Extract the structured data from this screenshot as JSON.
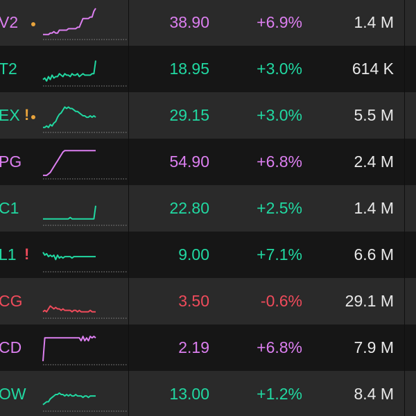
{
  "colors": {
    "green": "#21d9a2",
    "purple": "#dc7ff0",
    "red": "#f04b5b",
    "amber": "#e8a33c",
    "white": "#e8e8e8"
  },
  "rows": [
    {
      "ticker": "V2",
      "price": "38.90",
      "change": "+6.9%",
      "volume": "1.4 M",
      "color": "purple",
      "alert": "",
      "alert_color": "",
      "dot": true,
      "dot_color": "amber",
      "spark": [
        2,
        2,
        2,
        2,
        3,
        3,
        4,
        3,
        3,
        5,
        5,
        5,
        5,
        5,
        6,
        6,
        6,
        6,
        6,
        7,
        7,
        10,
        13,
        13,
        13,
        13,
        14,
        14,
        18,
        20
      ]
    },
    {
      "ticker": "T2",
      "price": "18.95",
      "change": "+3.0%",
      "volume": "614 K",
      "color": "green",
      "alert": "",
      "alert_color": "",
      "dot": false,
      "dot_color": "",
      "spark": [
        3,
        4,
        2,
        5,
        3,
        6,
        4,
        5,
        5,
        7,
        6,
        5,
        7,
        6,
        6,
        5,
        7,
        6,
        6,
        7,
        5,
        6,
        7,
        6,
        6,
        6,
        6,
        7,
        7,
        16
      ]
    },
    {
      "ticker": "EX",
      "price": "29.15",
      "change": "+3.0%",
      "volume": "5.5 M",
      "color": "green",
      "alert": "!",
      "alert_color": "amber",
      "dot": true,
      "dot_color": "amber",
      "spark": [
        2,
        2,
        3,
        2,
        4,
        3,
        5,
        6,
        9,
        11,
        12,
        14,
        16,
        15,
        16,
        15,
        15,
        14,
        13,
        13,
        12,
        11,
        10,
        10,
        9,
        9,
        10,
        9,
        10,
        9
      ]
    },
    {
      "ticker": "PG",
      "price": "54.90",
      "change": "+6.8%",
      "volume": "2.4 M",
      "color": "purple",
      "alert": "",
      "alert_color": "",
      "dot": false,
      "dot_color": "",
      "spark": [
        1,
        1,
        1,
        2,
        3,
        5,
        7,
        9,
        11,
        13,
        15,
        17,
        18,
        18,
        18,
        18,
        18,
        18,
        18,
        18,
        18,
        18,
        18,
        18,
        18,
        18,
        18,
        18,
        18,
        18
      ]
    },
    {
      "ticker": "C1",
      "price": "22.80",
      "change": "+2.5%",
      "volume": "1.4 M",
      "color": "green",
      "alert": "",
      "alert_color": "",
      "dot": false,
      "dot_color": "",
      "spark": [
        3,
        3,
        3,
        3,
        3,
        3,
        3,
        3,
        3,
        3,
        3,
        3,
        3,
        3,
        3,
        4,
        3,
        3,
        3,
        3,
        3,
        3,
        3,
        3,
        3,
        3,
        3,
        3,
        3,
        12
      ]
    },
    {
      "ticker": "L1",
      "price": "9.00",
      "change": "+7.1%",
      "volume": "6.6 M",
      "color": "green",
      "alert": "!",
      "alert_color": "red",
      "dot": false,
      "dot_color": "",
      "spark": [
        12,
        10,
        11,
        9,
        10,
        9,
        10,
        7,
        10,
        8,
        9,
        8,
        9,
        9,
        9,
        9,
        8,
        9,
        9,
        9,
        9,
        9,
        9,
        9,
        9,
        9,
        9,
        9,
        9,
        9
      ]
    },
    {
      "ticker": "CG",
      "price": "3.50",
      "change": "-0.6%",
      "volume": "29.1 M",
      "color": "red",
      "alert": "",
      "alert_color": "",
      "dot": false,
      "dot_color": "",
      "spark": [
        3,
        4,
        3,
        5,
        7,
        6,
        5,
        6,
        5,
        5,
        4,
        5,
        4,
        4,
        4,
        4,
        3,
        4,
        4,
        3,
        4,
        3,
        3,
        3,
        3,
        3,
        4,
        3,
        3,
        3
      ]
    },
    {
      "ticker": "CD",
      "price": "2.19",
      "change": "+6.8%",
      "volume": "7.9 M",
      "color": "purple",
      "alert": "",
      "alert_color": "",
      "dot": false,
      "dot_color": "",
      "spark": [
        1,
        17,
        17,
        17,
        17,
        17,
        17,
        17,
        17,
        17,
        17,
        17,
        17,
        17,
        17,
        17,
        17,
        17,
        17,
        17,
        17,
        15,
        18,
        15,
        17,
        15,
        18,
        17,
        18,
        17
      ]
    },
    {
      "ticker": "OW",
      "price": "13.00",
      "change": "+1.2%",
      "volume": "8.4 M",
      "color": "green",
      "alert": "",
      "alert_color": "",
      "dot": false,
      "dot_color": "",
      "spark": [
        3,
        4,
        5,
        5,
        7,
        8,
        9,
        10,
        10,
        11,
        10,
        10,
        9,
        10,
        9,
        10,
        9,
        9,
        10,
        9,
        9,
        9,
        8,
        9,
        9,
        8,
        9,
        9,
        9,
        9
      ]
    }
  ]
}
